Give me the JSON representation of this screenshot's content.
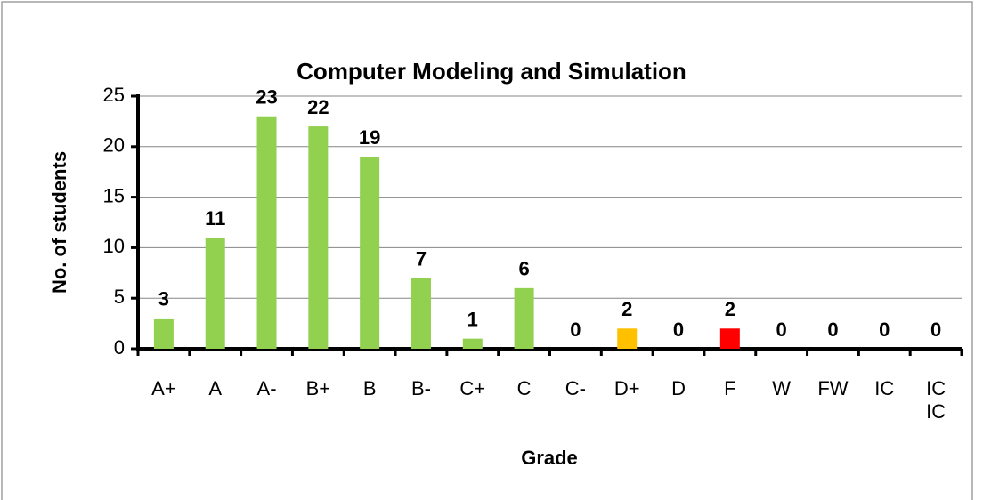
{
  "chart_data": {
    "type": "bar",
    "title": "Computer Modeling and Simulation",
    "categories": [
      "A+",
      "A",
      "A-",
      "B+",
      "B",
      "B-",
      "C+",
      "C",
      "C-",
      "D+",
      "D",
      "F",
      "W",
      "FW",
      "IC",
      "IC IC"
    ],
    "values": [
      3,
      11,
      23,
      22,
      19,
      7,
      1,
      6,
      0,
      2,
      0,
      2,
      0,
      0,
      0,
      0
    ],
    "colors": [
      "#92d050",
      "#92d050",
      "#92d050",
      "#92d050",
      "#92d050",
      "#92d050",
      "#92d050",
      "#92d050",
      "#92d050",
      "#ffc000",
      "#92d050",
      "#ff0000",
      "#92d050",
      "#92d050",
      "#92d050",
      "#92d050"
    ],
    "ylim": [
      0,
      25
    ],
    "yticks": [
      0,
      5,
      10,
      15,
      20,
      25
    ],
    "grid": true,
    "xlabel": "Grade",
    "ylabel": "No. of students"
  }
}
